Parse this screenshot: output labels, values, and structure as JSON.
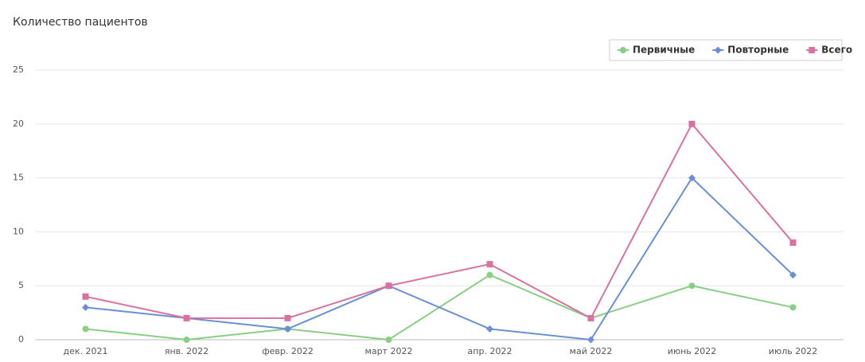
{
  "chart_data": {
    "type": "line",
    "title": "Количество пациентов",
    "categories": [
      "дек. 2021",
      "янв. 2022",
      "февр. 2022",
      "март 2022",
      "апр. 2022",
      "май 2022",
      "июнь 2022",
      "июль 2022"
    ],
    "series": [
      {
        "name": "Первичные",
        "color": "#88cf85",
        "marker": "circle",
        "values": [
          1,
          0,
          1,
          0,
          6,
          2,
          5,
          3
        ]
      },
      {
        "name": "Повторные",
        "color": "#6a8fd6",
        "marker": "diamond",
        "values": [
          3,
          2,
          1,
          5,
          1,
          0,
          15,
          6
        ]
      },
      {
        "name": "Всего",
        "color": "#d9729f",
        "marker": "square",
        "values": [
          4,
          2,
          2,
          5,
          7,
          2,
          20,
          9
        ]
      }
    ],
    "ylim": [
      0,
      25
    ],
    "yticks": [
      0,
      5,
      10,
      15,
      20,
      25
    ],
    "grid": true,
    "legend": "top-right"
  }
}
